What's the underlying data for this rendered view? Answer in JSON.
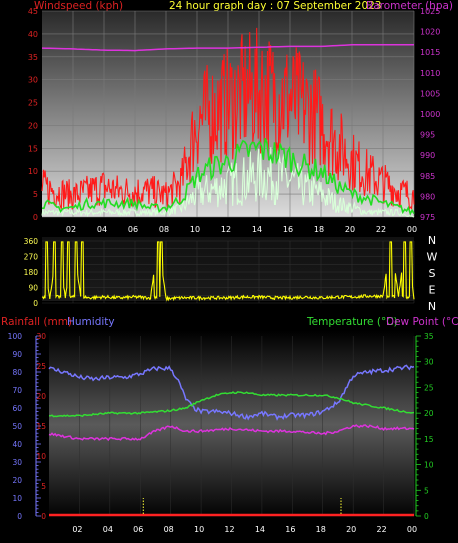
{
  "header": {
    "left_title": "Windspeed (kph)",
    "center_title": "24 hour graph day : 07 September 2023",
    "right_title": "Barometer (hpa)"
  },
  "colors": {
    "wind_speed": "#ff1a1a",
    "wind_avg": "#22dd22",
    "wind_low": "#d8ffd8",
    "barometer": "#dd33dd",
    "direction": "#ffff00",
    "humidity": "#7777ff",
    "temperature": "#33dd33",
    "dew_point": "#dd33dd",
    "rainfall": "#ff2222",
    "rain_marker": "#ffff33",
    "axis_red": "#dd2222",
    "axis_magenta": "#cc33cc",
    "axis_green": "#22cc22"
  },
  "chart_data": [
    {
      "type": "line",
      "id": "wind_pressure",
      "title": "24 hour graph day : 07 September 2023",
      "ylabel": "Windspeed (kph)",
      "y2label": "Barometer (hpa)",
      "ylim": [
        0,
        45
      ],
      "y2lim": [
        975,
        1025
      ],
      "yticks": [
        "0",
        "5",
        "10",
        "15",
        "20",
        "25",
        "30",
        "35",
        "40",
        "45"
      ],
      "y2ticks": [
        "975",
        "980",
        "985",
        "990",
        "995",
        "1000",
        "1005",
        "1010",
        "1015",
        "1020",
        "1025"
      ],
      "xticks": [
        "02",
        "04",
        "06",
        "08",
        "10",
        "12",
        "14",
        "16",
        "18",
        "20",
        "22",
        "00"
      ],
      "grid": true,
      "series": [
        {
          "key": "gust",
          "x": [
            0,
            1,
            2,
            3,
            4,
            5,
            6,
            7,
            8,
            9,
            10,
            11,
            12,
            13,
            14,
            15,
            16,
            17,
            18,
            19,
            20,
            21,
            22,
            23,
            24
          ],
          "values": [
            7,
            6,
            5,
            6,
            7,
            6,
            6,
            6,
            5,
            8,
            22,
            24,
            26,
            28,
            29,
            28,
            27,
            25,
            22,
            17,
            13,
            10,
            8,
            6,
            5
          ]
        },
        {
          "key": "average",
          "x": [
            0,
            1,
            2,
            3,
            4,
            5,
            6,
            7,
            8,
            9,
            10,
            11,
            12,
            13,
            14,
            15,
            16,
            17,
            18,
            19,
            20,
            21,
            22,
            23,
            24
          ],
          "values": [
            3,
            2,
            2,
            3,
            3,
            3,
            3,
            2,
            2,
            4,
            9,
            11,
            12,
            14,
            15,
            14,
            13,
            11,
            10,
            7,
            5,
            4,
            3,
            2,
            1
          ]
        },
        {
          "key": "low",
          "x": [
            0,
            1,
            2,
            3,
            4,
            5,
            6,
            7,
            8,
            9,
            10,
            11,
            12,
            13,
            14,
            15,
            16,
            17,
            18,
            19,
            20,
            21,
            22,
            23,
            24
          ],
          "values": [
            1,
            1,
            1,
            1,
            1,
            1,
            1,
            1,
            1,
            2,
            5,
            6,
            7,
            8,
            9,
            9,
            8,
            6,
            5,
            3,
            2,
            1,
            1,
            1,
            0
          ]
        },
        {
          "key": "barometer",
          "axis": "y2",
          "x": [
            0,
            2,
            4,
            6,
            8,
            10,
            12,
            14,
            16,
            18,
            20,
            22,
            24
          ],
          "values": [
            1016,
            1015.8,
            1015.5,
            1015.4,
            1015.8,
            1016,
            1016,
            1016.2,
            1016.4,
            1016.4,
            1016.8,
            1016.8,
            1016.8
          ]
        }
      ]
    },
    {
      "type": "scatter",
      "id": "wind_direction",
      "ylim": [
        0,
        360
      ],
      "yticks": [
        "0",
        "45",
        "90",
        "135",
        "180",
        "225",
        "270",
        "315",
        "360"
      ],
      "compass": [
        "N",
        "W",
        "S",
        "E",
        "N"
      ],
      "xticks": [
        "02",
        "04",
        "06",
        "08",
        "10",
        "12",
        "14",
        "16",
        "18",
        "20",
        "22",
        "00"
      ],
      "series": [
        {
          "key": "direction",
          "x": [
            0,
            0.5,
            1,
            1.5,
            2,
            2.5,
            3,
            4,
            5,
            6,
            7,
            7.5,
            8,
            9,
            10,
            11,
            12,
            13,
            14,
            15,
            16,
            17,
            18,
            19,
            20,
            21,
            22,
            22.5,
            23,
            23.5,
            24
          ],
          "values": [
            360,
            20,
            360,
            30,
            360,
            40,
            30,
            35,
            30,
            35,
            30,
            360,
            25,
            30,
            30,
            30,
            30,
            35,
            35,
            30,
            30,
            35,
            30,
            35,
            35,
            40,
            40,
            350,
            40,
            360,
            30
          ]
        }
      ]
    },
    {
      "type": "line",
      "id": "temp_humidity",
      "ylabel": "Rainfall (mm)",
      "ylabel2": "Humidity",
      "y2label": "Temperature (°C)",
      "y2label2": "Dew Point (°C)",
      "humidity_lim": [
        0,
        100
      ],
      "rain_lim": [
        0,
        30
      ],
      "temp_lim": [
        0,
        35
      ],
      "humidity_ticks": [
        "0",
        "10",
        "20",
        "30",
        "40",
        "50",
        "60",
        "70",
        "80",
        "90",
        "100"
      ],
      "rain_ticks": [
        "0",
        "5",
        "10",
        "15",
        "20",
        "25",
        "30"
      ],
      "temp_ticks": [
        "0",
        "5",
        "10",
        "15",
        "20",
        "25",
        "30",
        "35"
      ],
      "xticks": [
        "02",
        "04",
        "06",
        "08",
        "10",
        "12",
        "14",
        "16",
        "18",
        "20",
        "22",
        "00"
      ],
      "series": [
        {
          "key": "humidity",
          "x": [
            0,
            1,
            2,
            3,
            4,
            5,
            6,
            7,
            8,
            8.5,
            9,
            9.5,
            10,
            11,
            12,
            13,
            14,
            15,
            16,
            17,
            18,
            19,
            20,
            21,
            22,
            23,
            24
          ],
          "values": [
            82,
            80,
            77,
            76,
            77,
            77,
            79,
            82,
            82,
            75,
            65,
            60,
            58,
            58,
            57,
            55,
            57,
            55,
            56,
            56,
            58,
            63,
            78,
            80,
            81,
            82,
            83
          ]
        },
        {
          "key": "temperature",
          "x": [
            0,
            2,
            4,
            6,
            8,
            9,
            10,
            11,
            12,
            13,
            14,
            15,
            16,
            17,
            18,
            19,
            20,
            21,
            22,
            23,
            24
          ],
          "values": [
            19.5,
            19.5,
            20,
            20,
            20.5,
            21,
            22.5,
            23.5,
            24,
            24,
            23.5,
            23.5,
            23.5,
            23.5,
            23.5,
            23,
            22,
            21.5,
            21,
            20.5,
            20
          ]
        },
        {
          "key": "dew_point",
          "x": [
            0,
            2,
            4,
            6,
            7,
            8,
            9,
            10,
            12,
            14,
            16,
            18,
            19,
            20,
            21,
            22,
            23,
            24
          ],
          "values": [
            16,
            15,
            15,
            15,
            16.5,
            17.5,
            16.5,
            16.5,
            17,
            16.5,
            16.5,
            16,
            16.5,
            17.5,
            17.5,
            17,
            17,
            17
          ]
        },
        {
          "key": "rain_marker",
          "x": [
            6.2,
            19.2
          ],
          "values": [
            3,
            3
          ]
        }
      ]
    }
  ],
  "panel3": {
    "rain_label": "Rainfall (mm)",
    "humidity_label": "Humidity",
    "temp_label": "Temperature (°C)",
    "dew_label": "Dew Point (°C)"
  }
}
